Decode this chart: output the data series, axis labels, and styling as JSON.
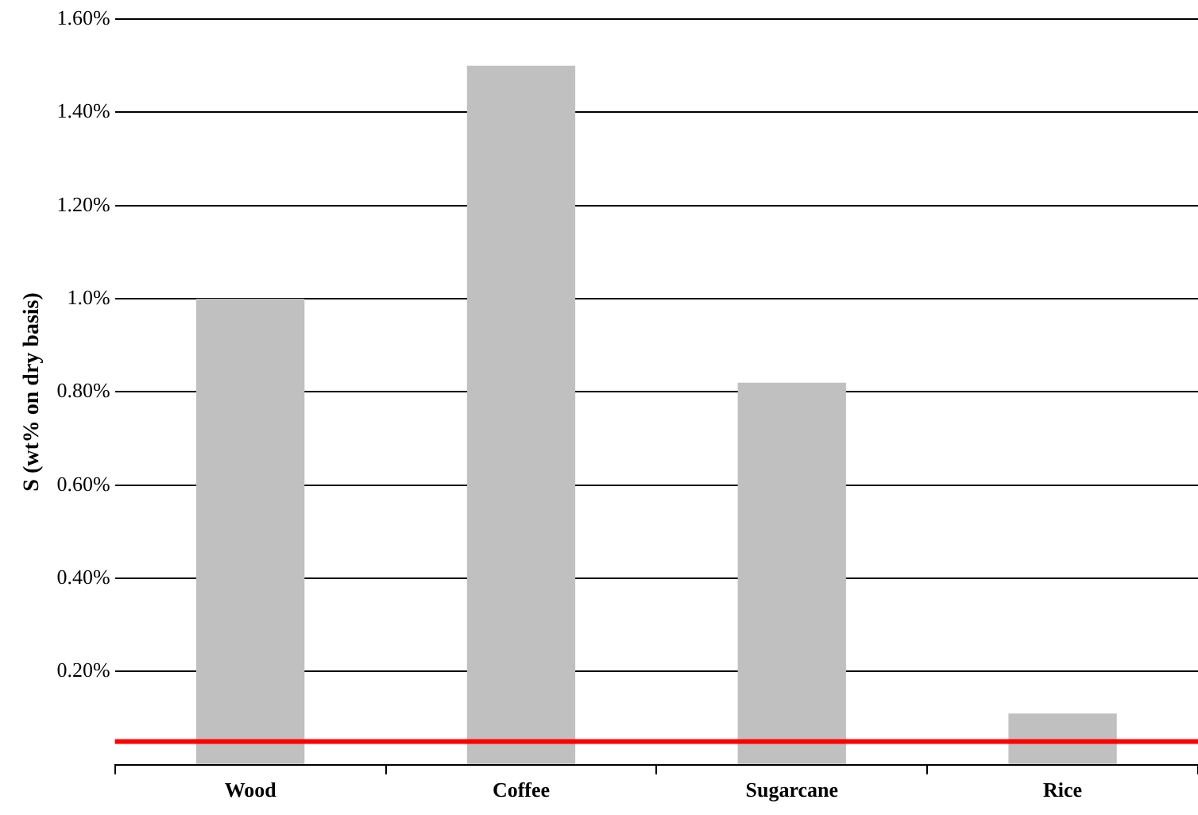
{
  "chart_data": {
    "type": "bar",
    "ylabel": "S (wt% on dry basis)",
    "categories": [
      "Wood",
      "Coffee",
      "Sugarcane",
      "Rice"
    ],
    "values": [
      1.0,
      1.5,
      0.82,
      0.11
    ],
    "color": "#c0c0c0",
    "ylim": [
      0,
      1.6
    ],
    "yticks": [
      {
        "value": 0,
        "label": null
      },
      {
        "value": 0.2,
        "label": "0.20%"
      },
      {
        "value": 0.4,
        "label": "0.40%"
      },
      {
        "value": 0.6,
        "label": "0.60%"
      },
      {
        "value": 0.8,
        "label": "0.80%"
      },
      {
        "value": 1.0,
        "label": "1.0%"
      },
      {
        "value": 1.2,
        "label": "1.20%"
      },
      {
        "value": 1.4,
        "label": "1.40%"
      },
      {
        "value": 1.6,
        "label": "1.60%"
      }
    ],
    "grid": "y",
    "ref_lines": [
      {
        "axis": "y",
        "value": 0.05,
        "color": "#ff0000"
      }
    ]
  }
}
